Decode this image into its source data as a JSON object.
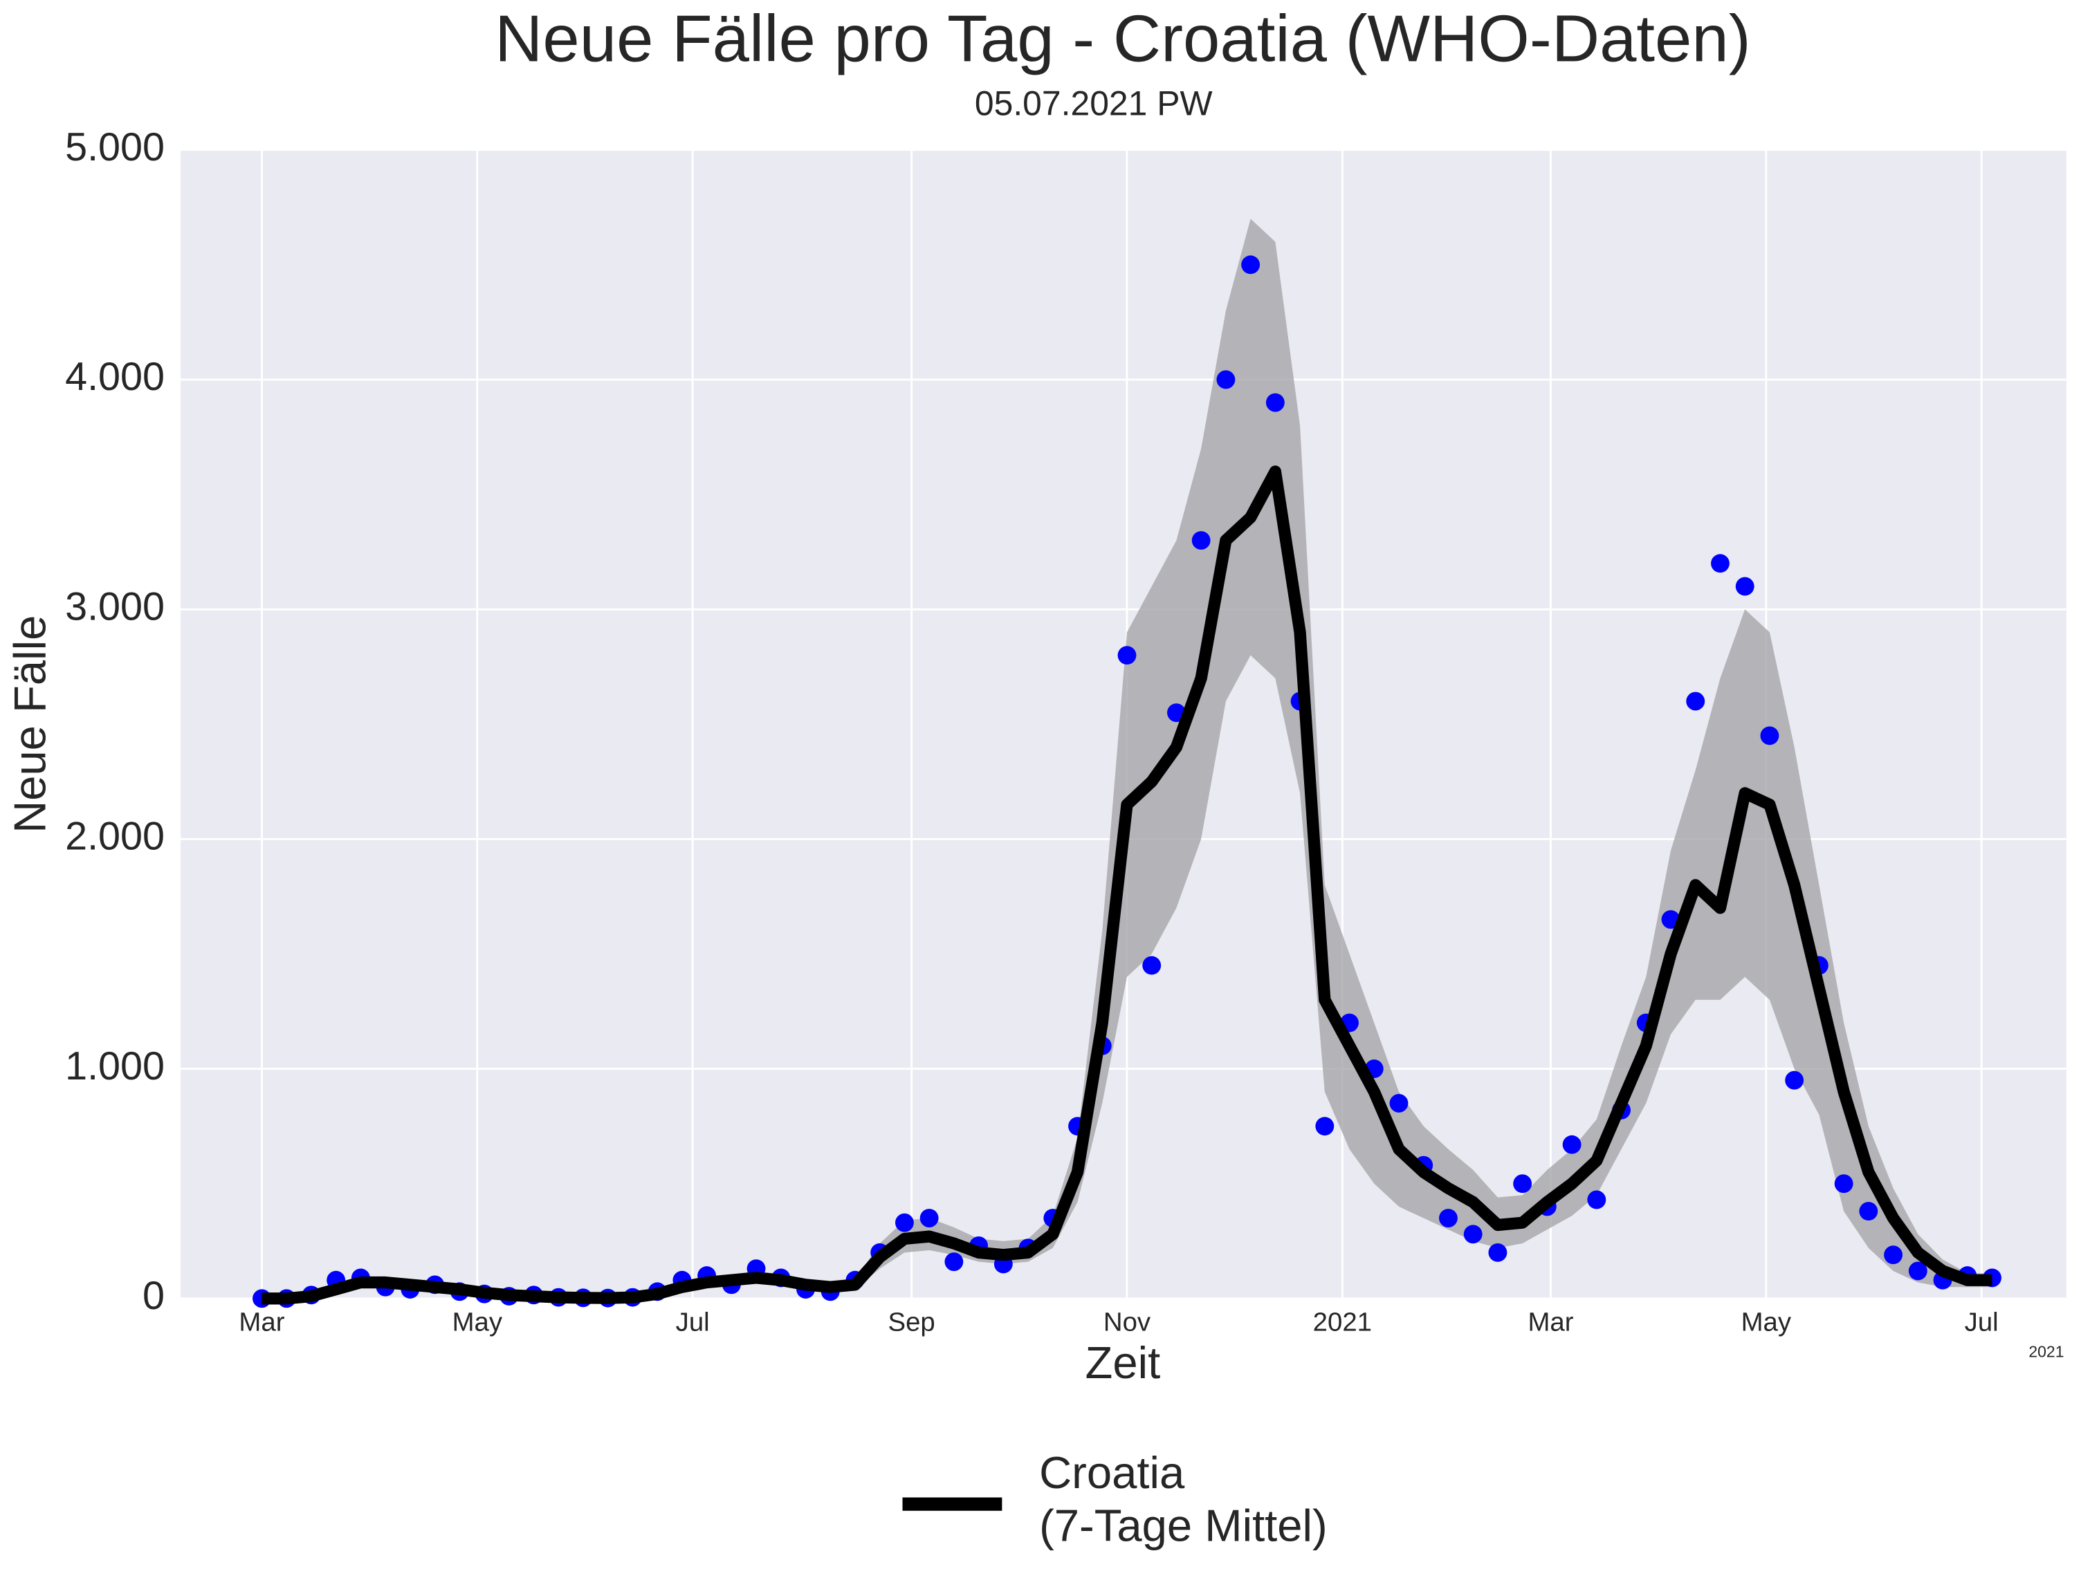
{
  "chart_data": {
    "type": "line",
    "title": "Neue Fälle pro Tag - Croatia (WHO-Daten)",
    "subtitle": "05.07.2021 PW",
    "x_label": "Zeit",
    "y_label": "Neue Fälle",
    "x_offset_label": "2021",
    "x": [
      "2020-03-01",
      "2020-03-08",
      "2020-03-15",
      "2020-03-22",
      "2020-03-29",
      "2020-04-05",
      "2020-04-12",
      "2020-04-19",
      "2020-04-26",
      "2020-05-03",
      "2020-05-10",
      "2020-05-17",
      "2020-05-24",
      "2020-05-31",
      "2020-06-07",
      "2020-06-14",
      "2020-06-21",
      "2020-06-28",
      "2020-07-05",
      "2020-07-12",
      "2020-07-19",
      "2020-07-26",
      "2020-08-02",
      "2020-08-09",
      "2020-08-16",
      "2020-08-23",
      "2020-08-30",
      "2020-09-06",
      "2020-09-13",
      "2020-09-20",
      "2020-09-27",
      "2020-10-04",
      "2020-10-11",
      "2020-10-18",
      "2020-10-25",
      "2020-11-01",
      "2020-11-08",
      "2020-11-15",
      "2020-11-22",
      "2020-11-29",
      "2020-12-06",
      "2020-12-13",
      "2020-12-20",
      "2020-12-27",
      "2021-01-03",
      "2021-01-10",
      "2021-01-17",
      "2021-01-24",
      "2021-01-31",
      "2021-02-07",
      "2021-02-14",
      "2021-02-21",
      "2021-02-28",
      "2021-03-07",
      "2021-03-14",
      "2021-03-21",
      "2021-03-28",
      "2021-04-04",
      "2021-04-11",
      "2021-04-18",
      "2021-04-25",
      "2021-05-02",
      "2021-05-09",
      "2021-05-16",
      "2021-05-23",
      "2021-05-30",
      "2021-06-06",
      "2021-06-13",
      "2021-06-20",
      "2021-06-27",
      "2021-07-04"
    ],
    "series": [
      {
        "name": "Croatia\n(7-Tage Mittel)",
        "color": "#000000",
        "values": [
          0,
          0,
          10,
          40,
          70,
          70,
          60,
          50,
          40,
          25,
          15,
          10,
          5,
          3,
          2,
          5,
          20,
          50,
          70,
          80,
          90,
          80,
          60,
          50,
          60,
          180,
          260,
          270,
          240,
          200,
          190,
          200,
          280,
          550,
          1200,
          2150,
          2250,
          2400,
          2700,
          3300,
          3400,
          3600,
          2900,
          1300,
          1100,
          900,
          650,
          550,
          480,
          420,
          320,
          330,
          420,
          500,
          600,
          850,
          1100,
          1500,
          1800,
          1700,
          2200,
          2150,
          1800,
          1350,
          900,
          550,
          350,
          200,
          120,
          80,
          80
        ]
      }
    ],
    "daily_values": [
      0,
      0,
      15,
      80,
      90,
      50,
      40,
      60,
      30,
      20,
      10,
      15,
      5,
      3,
      2,
      5,
      30,
      80,
      100,
      60,
      130,
      90,
      40,
      30,
      80,
      200,
      330,
      350,
      160,
      230,
      150,
      220,
      350,
      750,
      1100,
      2800,
      1450,
      2550,
      3300,
      4000,
      4500,
      3900,
      2600,
      750,
      1200,
      1000,
      850,
      580,
      350,
      280,
      200,
      500,
      400,
      670,
      430,
      820,
      1200,
      1650,
      2600,
      3200,
      3100,
      2450,
      950,
      1450,
      500,
      380,
      190,
      120,
      80,
      100,
      90
    ],
    "daily_color": "#0000ff",
    "band_lower": [
      0,
      0,
      5,
      25,
      50,
      50,
      45,
      35,
      30,
      18,
      10,
      7,
      3,
      2,
      1,
      3,
      12,
      35,
      50,
      60,
      65,
      60,
      45,
      35,
      40,
      130,
      200,
      210,
      190,
      160,
      150,
      160,
      220,
      420,
      850,
      1400,
      1500,
      1700,
      2000,
      2600,
      2800,
      2700,
      2200,
      900,
      650,
      500,
      400,
      350,
      300,
      250,
      220,
      240,
      300,
      360,
      450,
      650,
      850,
      1150,
      1300,
      1300,
      1400,
      1300,
      1000,
      800,
      380,
      220,
      120,
      70,
      50,
      50,
      50
    ],
    "band_upper": [
      0,
      0,
      15,
      60,
      95,
      95,
      80,
      65,
      55,
      35,
      20,
      14,
      8,
      5,
      3,
      8,
      28,
      70,
      95,
      105,
      120,
      105,
      80,
      70,
      80,
      240,
      340,
      350,
      310,
      260,
      250,
      260,
      360,
      700,
      1600,
      2900,
      3100,
      3300,
      3700,
      4300,
      4700,
      4600,
      3800,
      1800,
      1500,
      1200,
      900,
      750,
      650,
      560,
      440,
      450,
      560,
      650,
      780,
      1100,
      1400,
      1950,
      2300,
      2700,
      3000,
      2900,
      2400,
      1800,
      1200,
      750,
      480,
      280,
      170,
      110,
      110
    ],
    "band_color": "#a0a0a4",
    "xlim": [
      "2020-02-07",
      "2021-07-25"
    ],
    "xticks": [
      {
        "value": "2020-03-01",
        "label": "Mar"
      },
      {
        "value": "2020-05-01",
        "label": "May"
      },
      {
        "value": "2020-07-01",
        "label": "Jul"
      },
      {
        "value": "2020-09-01",
        "label": "Sep"
      },
      {
        "value": "2020-11-01",
        "label": "Nov"
      },
      {
        "value": "2021-01-01",
        "label": "2021"
      },
      {
        "value": "2021-03-01",
        "label": "Mar"
      },
      {
        "value": "2021-05-01",
        "label": "May"
      },
      {
        "value": "2021-07-01",
        "label": "Jul"
      }
    ],
    "ylim": [
      0,
      5000
    ],
    "yticks": [
      0,
      {
        "value": 1000,
        "label": "1.000"
      },
      {
        "value": 2000,
        "label": "2.000"
      },
      {
        "value": 3000,
        "label": "3.000"
      },
      {
        "value": 4000,
        "label": "4.000"
      },
      {
        "value": 5000,
        "label": "5.000"
      }
    ],
    "grid": true,
    "legend": "bottom"
  }
}
